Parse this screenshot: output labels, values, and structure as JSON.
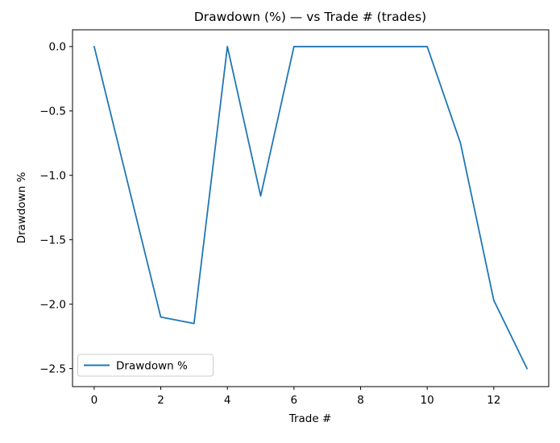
{
  "chart_data": {
    "type": "line",
    "title": "Drawdown (%) — vs Trade # (trades)",
    "xlabel": "Trade #",
    "ylabel": "Drawdown %",
    "x": [
      0,
      1,
      2,
      3,
      4,
      5,
      6,
      7,
      8,
      9,
      10,
      11,
      12,
      13
    ],
    "series": [
      {
        "name": "Drawdown %",
        "values": [
          0.0,
          -1.05,
          -2.1,
          -2.15,
          0.0,
          -1.16,
          0.0,
          0.0,
          0.0,
          0.0,
          0.0,
          -0.75,
          -1.97,
          -2.5
        ],
        "color": "#1f77b4"
      }
    ],
    "xlim": [
      -0.65,
      13.65
    ],
    "ylim": [
      -2.64,
      0.13
    ],
    "x_ticks": [
      0,
      2,
      4,
      6,
      8,
      10,
      12
    ],
    "x_tick_labels": [
      "0",
      "2",
      "4",
      "6",
      "8",
      "10",
      "12"
    ],
    "y_ticks": [
      0.0,
      -0.5,
      -1.0,
      -1.5,
      -2.0,
      -2.5
    ],
    "y_tick_labels": [
      "0.0",
      "−0.5",
      "−1.0",
      "−1.5",
      "−2.0",
      "−2.5"
    ],
    "grid": false,
    "legend": {
      "position": "lower left",
      "entries": [
        "Drawdown %"
      ]
    }
  },
  "colors": {
    "line": "#1f77b4",
    "axes": "#000000",
    "background": "#ffffff",
    "legend_border": "#cccccc"
  }
}
